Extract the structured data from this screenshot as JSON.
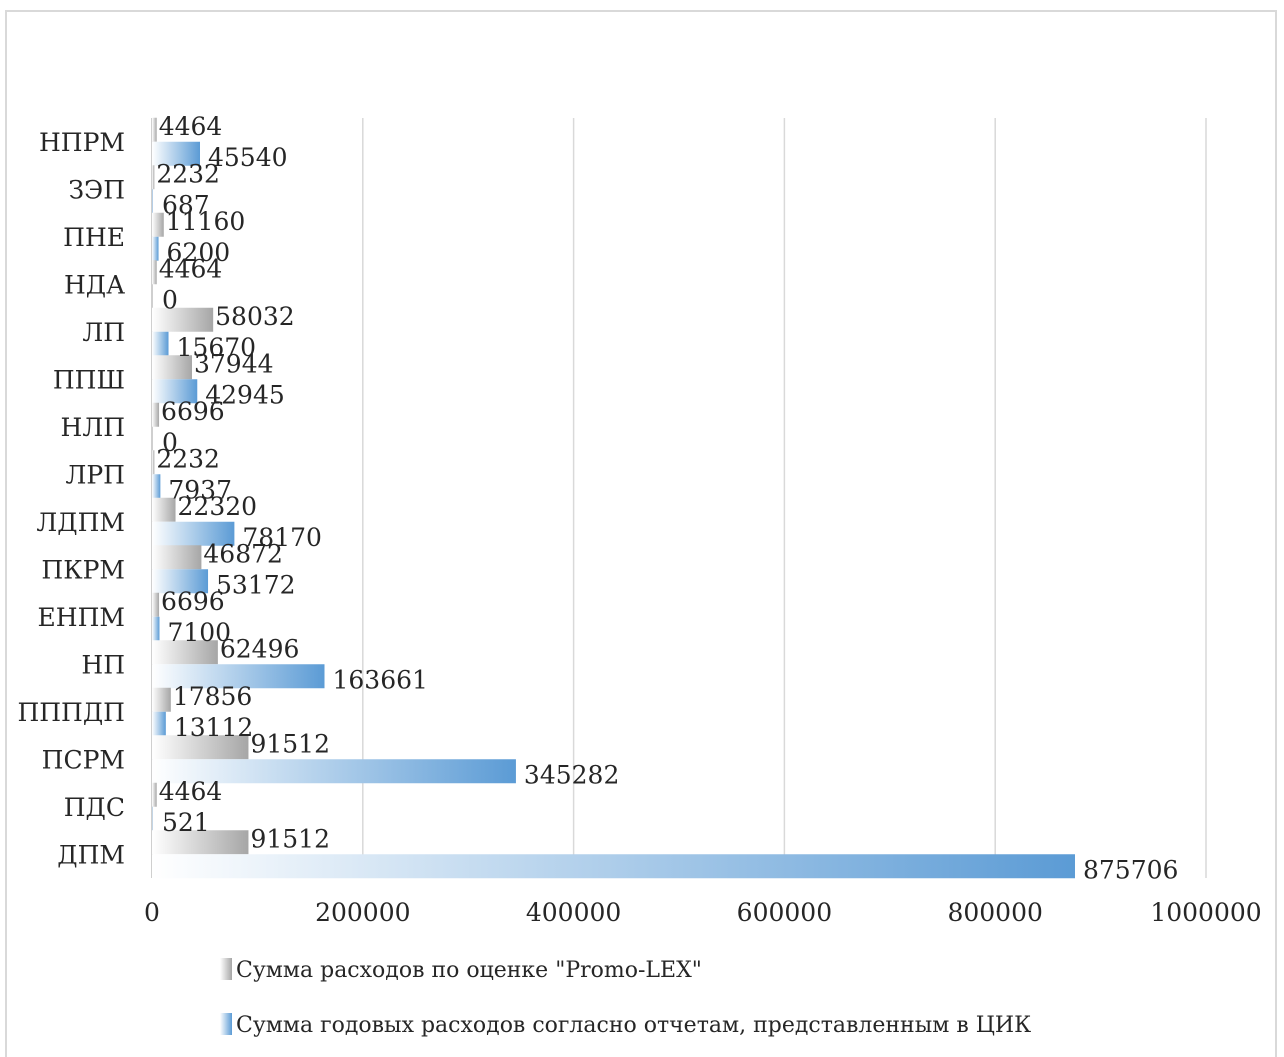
{
  "chart_data": {
    "type": "bar",
    "orientation": "horizontal",
    "categories": [
      "НПРМ",
      "ЗЭП",
      "ПНЕ",
      "НДА",
      "ЛП",
      "ППШ",
      "НЛП",
      "ЛРП",
      "ЛДПМ",
      "ПКРМ",
      "ЕНПМ",
      "НП",
      "ПППДП",
      "ПСРМ",
      "ПДС",
      "ДПМ"
    ],
    "series": [
      {
        "name": "Сумма расходов по оценке \"Promo-LEX\"",
        "color": "#a6a6a6",
        "values": [
          4464,
          2232,
          11160,
          4464,
          58032,
          37944,
          6696,
          2232,
          22320,
          46872,
          6696,
          62496,
          17856,
          91512,
          4464,
          91512
        ]
      },
      {
        "name": "Сумма годовых расходов согласно отчетам, представленным в ЦИК",
        "color": "#5b9bd5",
        "values": [
          45540,
          687,
          6200,
          0,
          15670,
          42945,
          0,
          7937,
          78170,
          53172,
          7100,
          163661,
          13112,
          345282,
          521,
          875706
        ]
      }
    ],
    "xlim": [
      0,
      1000000
    ],
    "xticks": [
      "0",
      "200000",
      "400000",
      "600000",
      "800000",
      "1000000"
    ],
    "grid": true,
    "legend_position": "bottom"
  },
  "legend": {
    "items": [
      "Сумма расходов по оценке \"Promo-LEX\"",
      "Сумма годовых расходов согласно отчетам, представленным в ЦИК"
    ]
  }
}
